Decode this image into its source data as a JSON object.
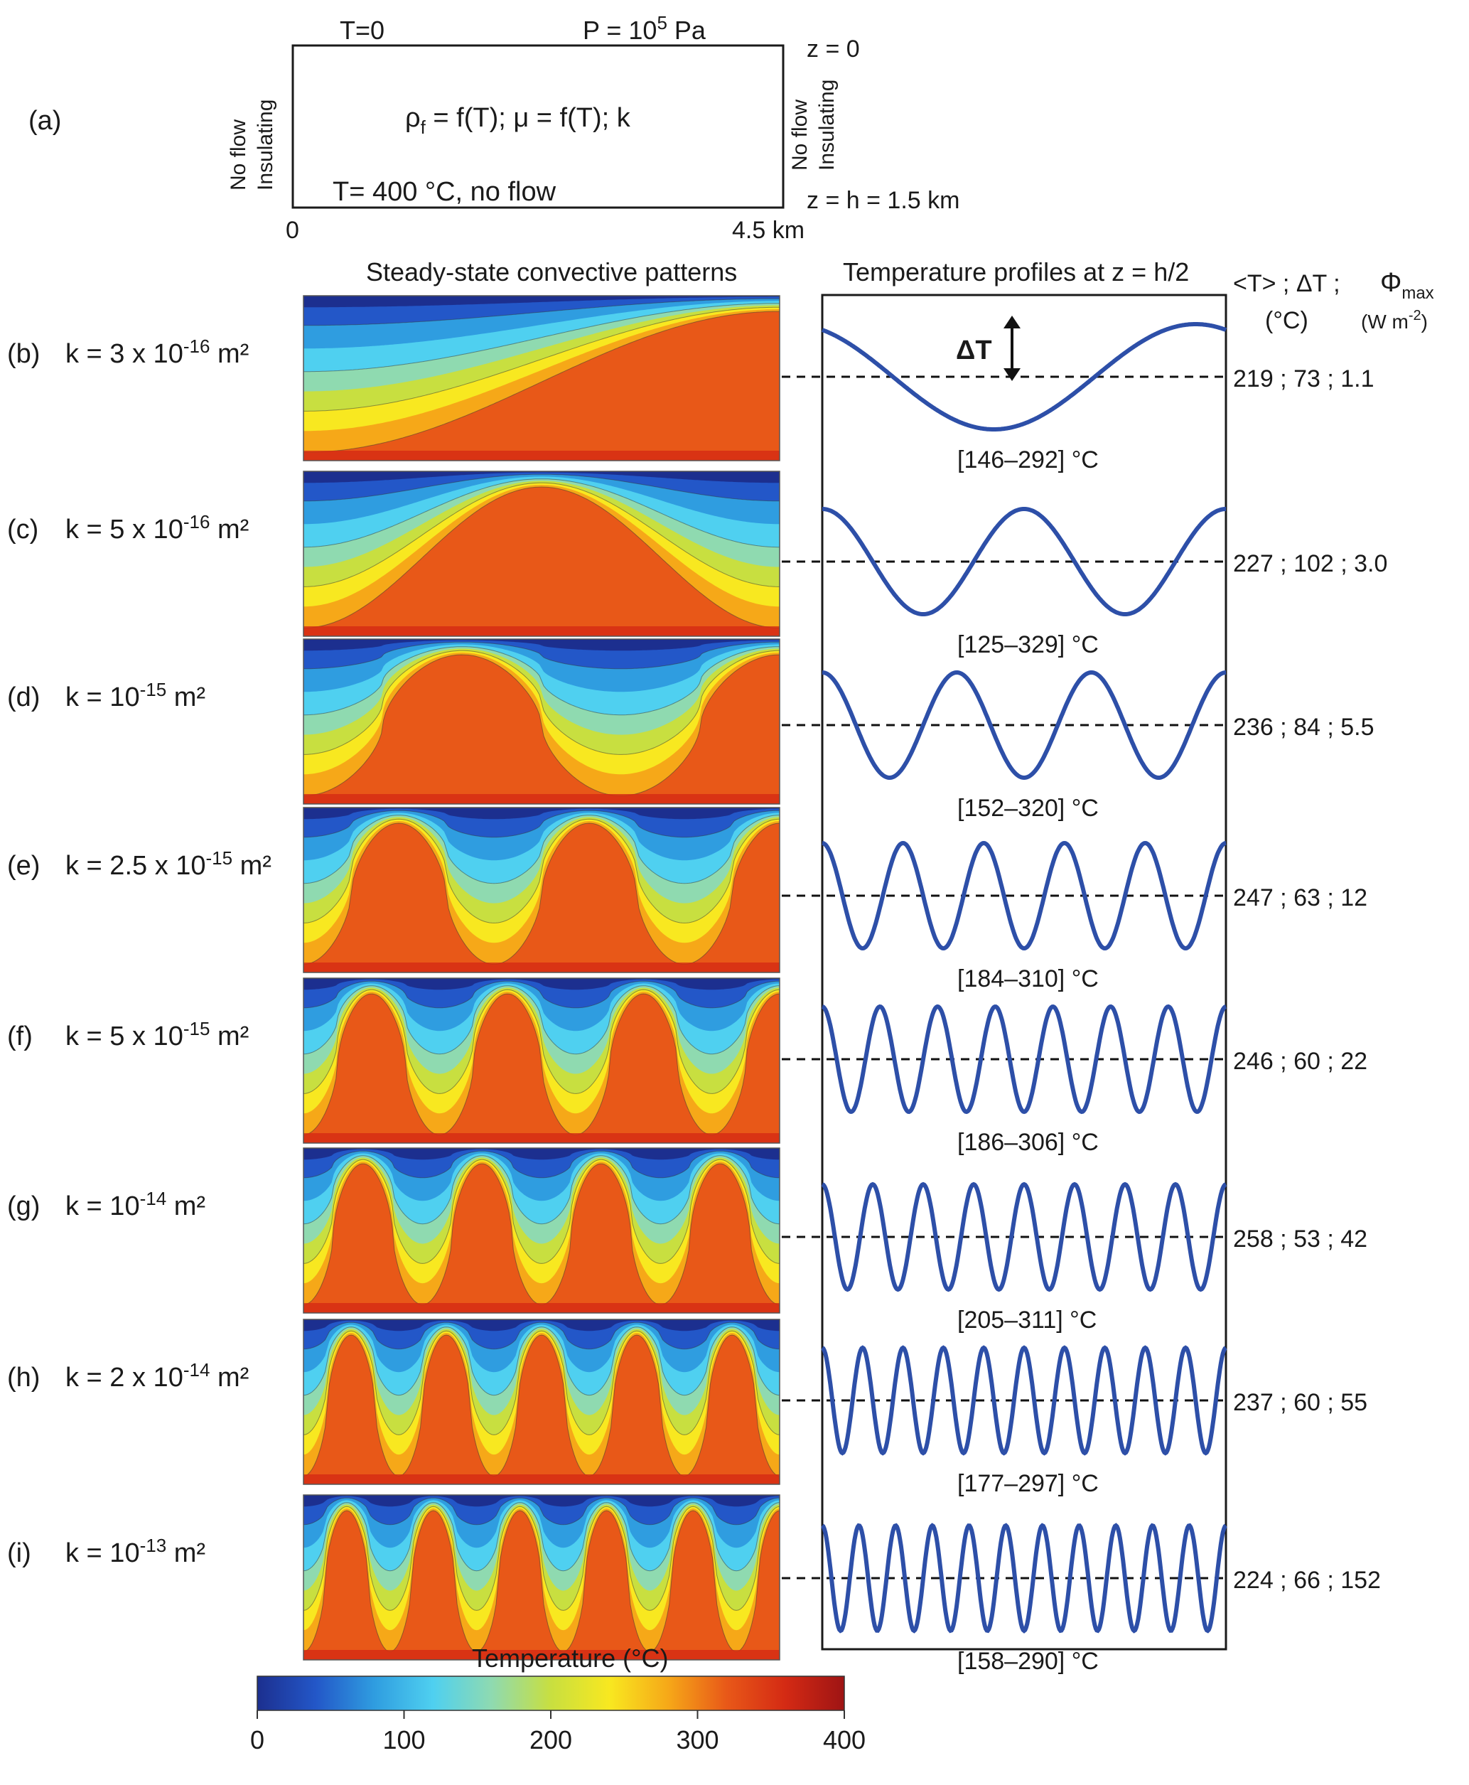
{
  "panel_a": {
    "label": "(a)",
    "top_temp": "T=0",
    "top_pressure_base": "P =  10",
    "top_pressure_exp": "5",
    "top_pressure_unit": " Pa",
    "z_top": "z = 0",
    "z_bottom": "z = h = 1.5 km",
    "left_bc_line1": "No flow",
    "left_bc_line2": "Insulating",
    "right_bc_line1": "No flow",
    "right_bc_line2": "Insulating",
    "props_rho": "ρ",
    "props_rho_sub": "f",
    "props_rest": " = f(T);  μ = f(T); k",
    "bottom_bc": "T= 400 °C,  no flow",
    "x_start": "0",
    "x_end": "4.5 km"
  },
  "headers": {
    "patterns": "Steady-state convective patterns",
    "profiles": "Temperature profiles  at  z = h/2",
    "stats_line1": "<T> ; ΔT ;",
    "stats_unit": "(°C)",
    "phi_symbol": "Φ",
    "phi_sub": "max",
    "phi_unit_base": "(W m",
    "phi_unit_exp": "-2",
    "phi_unit_end": ")",
    "delta_t": "ΔT"
  },
  "rows": [
    {
      "label": "(b)",
      "k_base": "k = 3 x 10",
      "k_exp": "-16",
      "k_unit": " m²",
      "cells": 1,
      "mean": 219,
      "dT": 73,
      "phi": "1.1",
      "range": "[146–292] °C",
      "stats": "219 ; 73 ;   1.1"
    },
    {
      "label": "(c)",
      "k_base": "k = 5 x 10",
      "k_exp": "-16",
      "k_unit": " m²",
      "cells": 2,
      "mean": 227,
      "dT": 102,
      "phi": "3.0",
      "range": "[125–329] °C",
      "stats": "227 ; 102 ;  3.0"
    },
    {
      "label": "(d)",
      "k_base": "k = 10",
      "k_exp": "-15",
      "k_unit": " m²",
      "cells": 3,
      "mean": 236,
      "dT": 84,
      "phi": "5.5",
      "range": "[152–320] °C",
      "stats": "236 ; 84 ;   5.5"
    },
    {
      "label": "(e)",
      "k_base": "k = 2.5 x 10",
      "k_exp": "-15",
      "k_unit": " m²",
      "cells": 5,
      "mean": 247,
      "dT": 63,
      "phi": "12",
      "range": "[184–310] °C",
      "stats": "247 ; 63 ;   12"
    },
    {
      "label": "(f)",
      "k_base": "k = 5 x 10",
      "k_exp": "-15",
      "k_unit": " m²",
      "cells": 7,
      "mean": 246,
      "dT": 60,
      "phi": "22",
      "range": "[186–306] °C",
      "stats": "246 ; 60 ;   22"
    },
    {
      "label": "(g)",
      "k_base": "k = 10",
      "k_exp": "-14",
      "k_unit": " m²",
      "cells": 8,
      "mean": 258,
      "dT": 53,
      "phi": "42",
      "range": "[205–311] °C",
      "stats": "258 ; 53 ;  42"
    },
    {
      "label": "(h)",
      "k_base": "k = 2 x 10",
      "k_exp": "-14",
      "k_unit": " m²",
      "cells": 10,
      "mean": 237,
      "dT": 60,
      "phi": "55",
      "range": "[177–297] °C",
      "stats": "237 ; 60 ;   55"
    },
    {
      "label": "(i)",
      "k_base": "k = 10",
      "k_exp": "-13",
      "k_unit": " m²",
      "cells": 11,
      "mean": 224,
      "dT": 66,
      "phi": "152",
      "range": "[158–290] °C",
      "stats": "224 ; 66 ; 152"
    }
  ],
  "colorbar": {
    "title": "Temperature   (°C)",
    "ticks": [
      "0",
      "100",
      "200",
      "300",
      "400"
    ],
    "min": 0,
    "max": 400,
    "colors": [
      "#1c2f8f",
      "#2357c8",
      "#2f9de0",
      "#4fd0f0",
      "#8fdab0",
      "#c8df40",
      "#f8e820",
      "#f6a818",
      "#e85818",
      "#d42a14",
      "#9e1414"
    ]
  }
}
